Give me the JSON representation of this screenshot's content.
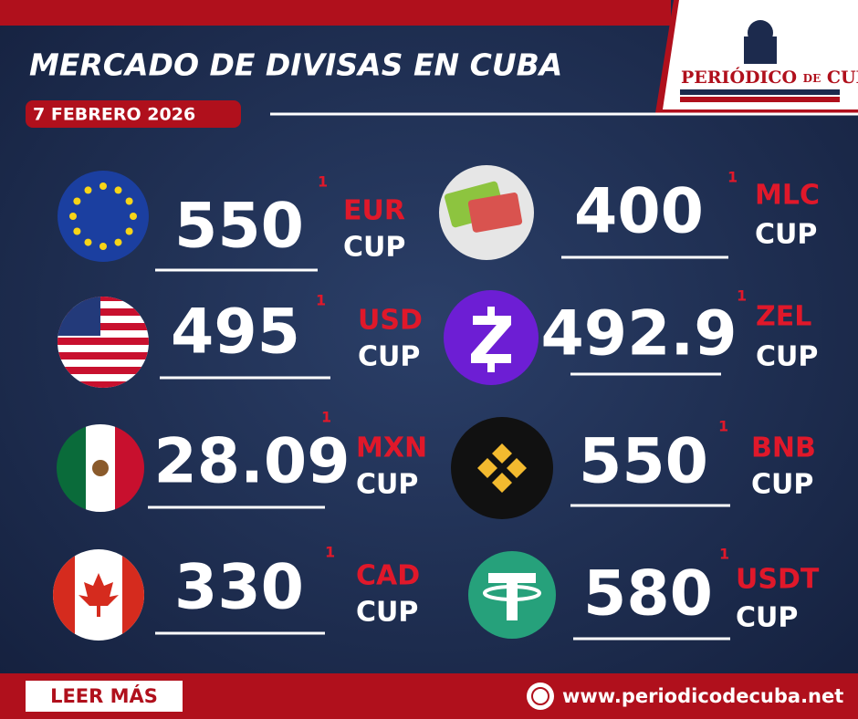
{
  "header": {
    "title": "MERCADO DE DIVISAS EN CUBA",
    "date": "7 FEBRERO 2026"
  },
  "logo": {
    "name1": "PERIÓDICO",
    "name2": "DE",
    "name3": "CUBA"
  },
  "rates": [
    {
      "value": 550,
      "note": "1",
      "currency": "EUR",
      "unit": "CUP"
    },
    {
      "value": 495,
      "note": "1",
      "currency": "USD",
      "unit": "CUP"
    },
    {
      "value": 28.09,
      "note": "1",
      "currency": "MXN",
      "unit": "CUP"
    },
    {
      "value": 330,
      "note": "1",
      "currency": "CAD",
      "unit": "CUP"
    },
    {
      "value": 400,
      "note": "1",
      "currency": "MLC",
      "unit": "CUP"
    },
    {
      "value": 492.9,
      "note": "1",
      "currency": "ZEL",
      "unit": "CUP"
    },
    {
      "value": 550,
      "note": "1",
      "currency": "BNB",
      "unit": "CUP"
    },
    {
      "value": 580,
      "note": "1",
      "currency": "USDT",
      "unit": "CUP"
    }
  ],
  "footer": {
    "button": "LEER MÁS",
    "url": "www.periodicodecuba.net"
  }
}
